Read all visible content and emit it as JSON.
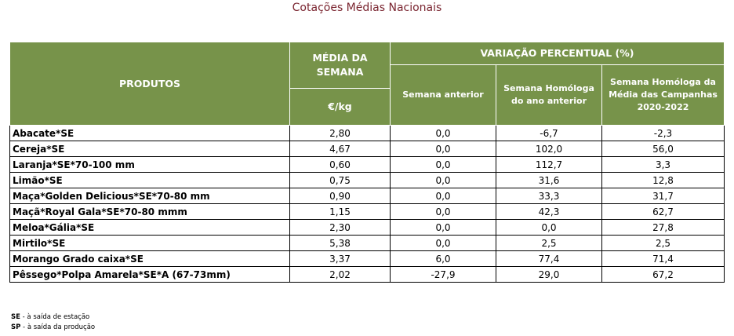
{
  "title": "Cotações Médias Nacionais",
  "headers": {
    "produtos": "PRODUTOS",
    "media_semana": "MÉDIA DA SEMANA",
    "unit": "€/kg",
    "variacao": "VARIAÇÃO PERCENTUAL (%)",
    "semana_anterior": "Semana anterior",
    "homologa_ano": "Semana Homóloga do ano anterior",
    "homologa_campanhas": "Semana Homóloga da Média das Campanhas 2020-2022"
  },
  "rows": [
    {
      "produto": "Abacate*SE",
      "media": "2,80",
      "sem_ant": "0,0",
      "hom_ano": "-6,7",
      "hom_camp": "-2,3"
    },
    {
      "produto": "Cereja*SE",
      "media": "4,67",
      "sem_ant": "0,0",
      "hom_ano": "102,0",
      "hom_camp": "56,0"
    },
    {
      "produto": "Laranja*SE*70-100 mm",
      "media": "0,60",
      "sem_ant": "0,0",
      "hom_ano": "112,7",
      "hom_camp": "3,3"
    },
    {
      "produto": "Limão*SE",
      "media": "0,75",
      "sem_ant": "0,0",
      "hom_ano": "31,6",
      "hom_camp": "12,8"
    },
    {
      "produto": "Maça*Golden Delicious*SE*70-80 mm",
      "media": "0,90",
      "sem_ant": "0,0",
      "hom_ano": "33,3",
      "hom_camp": "31,7"
    },
    {
      "produto": "Maçã*Royal Gala*SE*70-80 mmm",
      "media": "1,15",
      "sem_ant": "0,0",
      "hom_ano": "42,3",
      "hom_camp": "62,7"
    },
    {
      "produto": "Meloa*Gália*SE",
      "media": "2,30",
      "sem_ant": "0,0",
      "hom_ano": "0,0",
      "hom_camp": "27,8"
    },
    {
      "produto": "Mirtilo*SE",
      "media": "5,38",
      "sem_ant": "0,0",
      "hom_ano": "2,5",
      "hom_camp": "2,5"
    },
    {
      "produto": "Morango Grado caixa*SE",
      "media": "3,37",
      "sem_ant": "6,0",
      "hom_ano": "77,4",
      "hom_camp": "71,4"
    },
    {
      "produto": "Pêssego*Polpa Amarela*SE*A (67-73mm)",
      "media": "2,02",
      "sem_ant": "-27,9",
      "hom_ano": "29,0",
      "hom_camp": "67,2"
    }
  ],
  "legend": [
    {
      "code": "SE",
      "text": " - à saída de estação"
    },
    {
      "code": "SP",
      "text": " - à saída da produção"
    }
  ]
}
